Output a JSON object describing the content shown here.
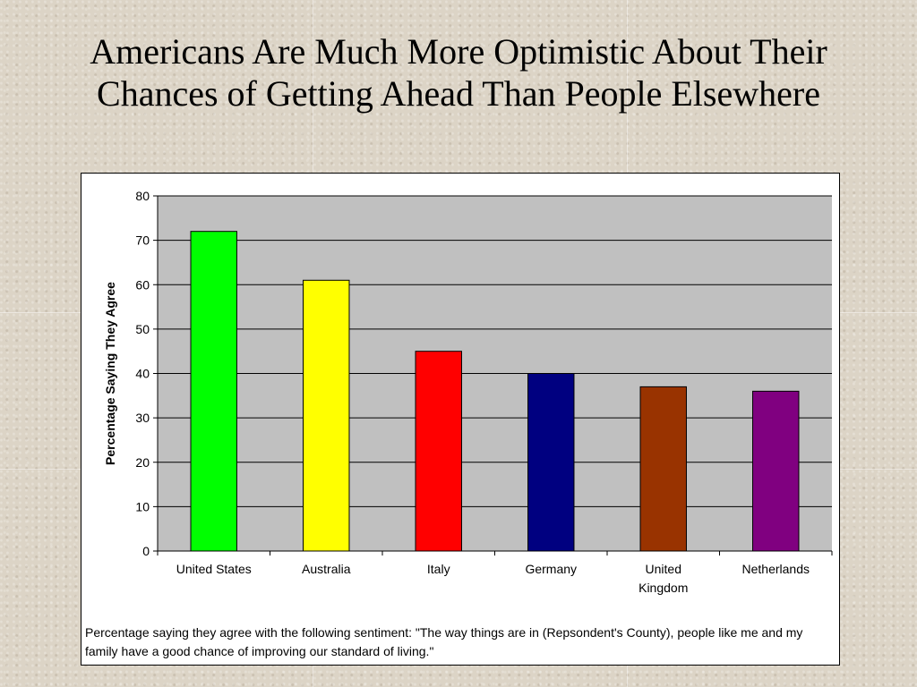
{
  "slide": {
    "title_line1": "Americans Are Much More Optimistic About Their",
    "title_line2": "Chances of Getting Ahead Than People Elsewhere"
  },
  "chart_data": {
    "type": "bar",
    "ylabel": "Percentage Saying They Agree",
    "ylim": [
      0,
      80
    ],
    "yticks": [
      0,
      10,
      20,
      30,
      40,
      50,
      60,
      70,
      80
    ],
    "categories": [
      "United States",
      "Australia",
      "Italy",
      "Germany",
      "United Kingdom",
      "Netherlands"
    ],
    "category_lines": [
      [
        "United States"
      ],
      [
        "Australia"
      ],
      [
        "Italy"
      ],
      [
        "Germany"
      ],
      [
        "United",
        "Kingdom"
      ],
      [
        "Netherlands"
      ]
    ],
    "values": [
      72,
      61,
      45,
      40,
      37,
      36
    ],
    "colors": [
      "#00ff00",
      "#ffff00",
      "#ff0000",
      "#000080",
      "#993300",
      "#800080"
    ],
    "plot_background": "#c0c0c0",
    "grid": true,
    "legend": "none",
    "caption": "Percentage saying they agree with the following sentiment: \"The way things are in (Repsondent's County), people like me and my family have a good chance of improving our standard of living.\""
  }
}
